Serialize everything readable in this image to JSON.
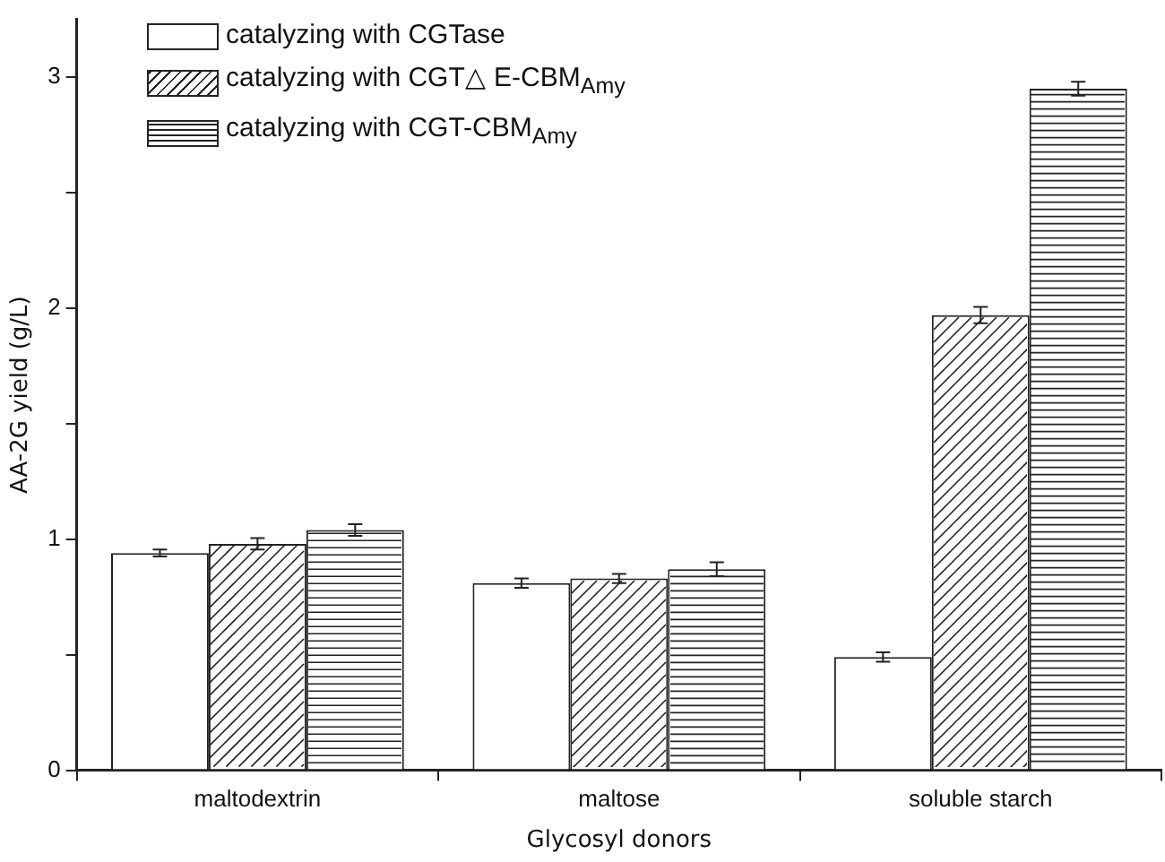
{
  "chart_data": {
    "type": "bar",
    "xlabel": "Glycosyl donors",
    "ylabel": "AA-2G yield (g/L)",
    "categories": [
      "maltodextrin",
      "maltose",
      "soluble starch"
    ],
    "series": [
      {
        "name": "catalyzing with CGTase",
        "color": "#ffffff",
        "values": [
          0.94,
          0.81,
          0.49
        ],
        "errors": [
          0.015,
          0.02,
          0.02
        ]
      },
      {
        "name": "catalyzing with CGT△ E-CBM$_{Amy}$",
        "color": "#ffffff",
        "values": [
          0.98,
          0.83,
          1.97
        ],
        "errors": [
          0.025,
          0.02,
          0.035
        ]
      },
      {
        "name": "catalyzing with CGT-CBM$_{Amy}$",
        "color": "#ffffff",
        "values": [
          1.04,
          0.87,
          2.95
        ],
        "errors": [
          0.025,
          0.03,
          0.03
        ]
      }
    ],
    "ylim": [
      0,
      3.25
    ],
    "yticks": [
      0,
      {
        "value": 0.5,
        "label": null
      },
      1,
      {
        "value": 1.5,
        "label": null
      },
      2,
      {
        "value": 2.5,
        "label": null
      },
      3
    ],
    "grid": false,
    "legend": "top left"
  }
}
